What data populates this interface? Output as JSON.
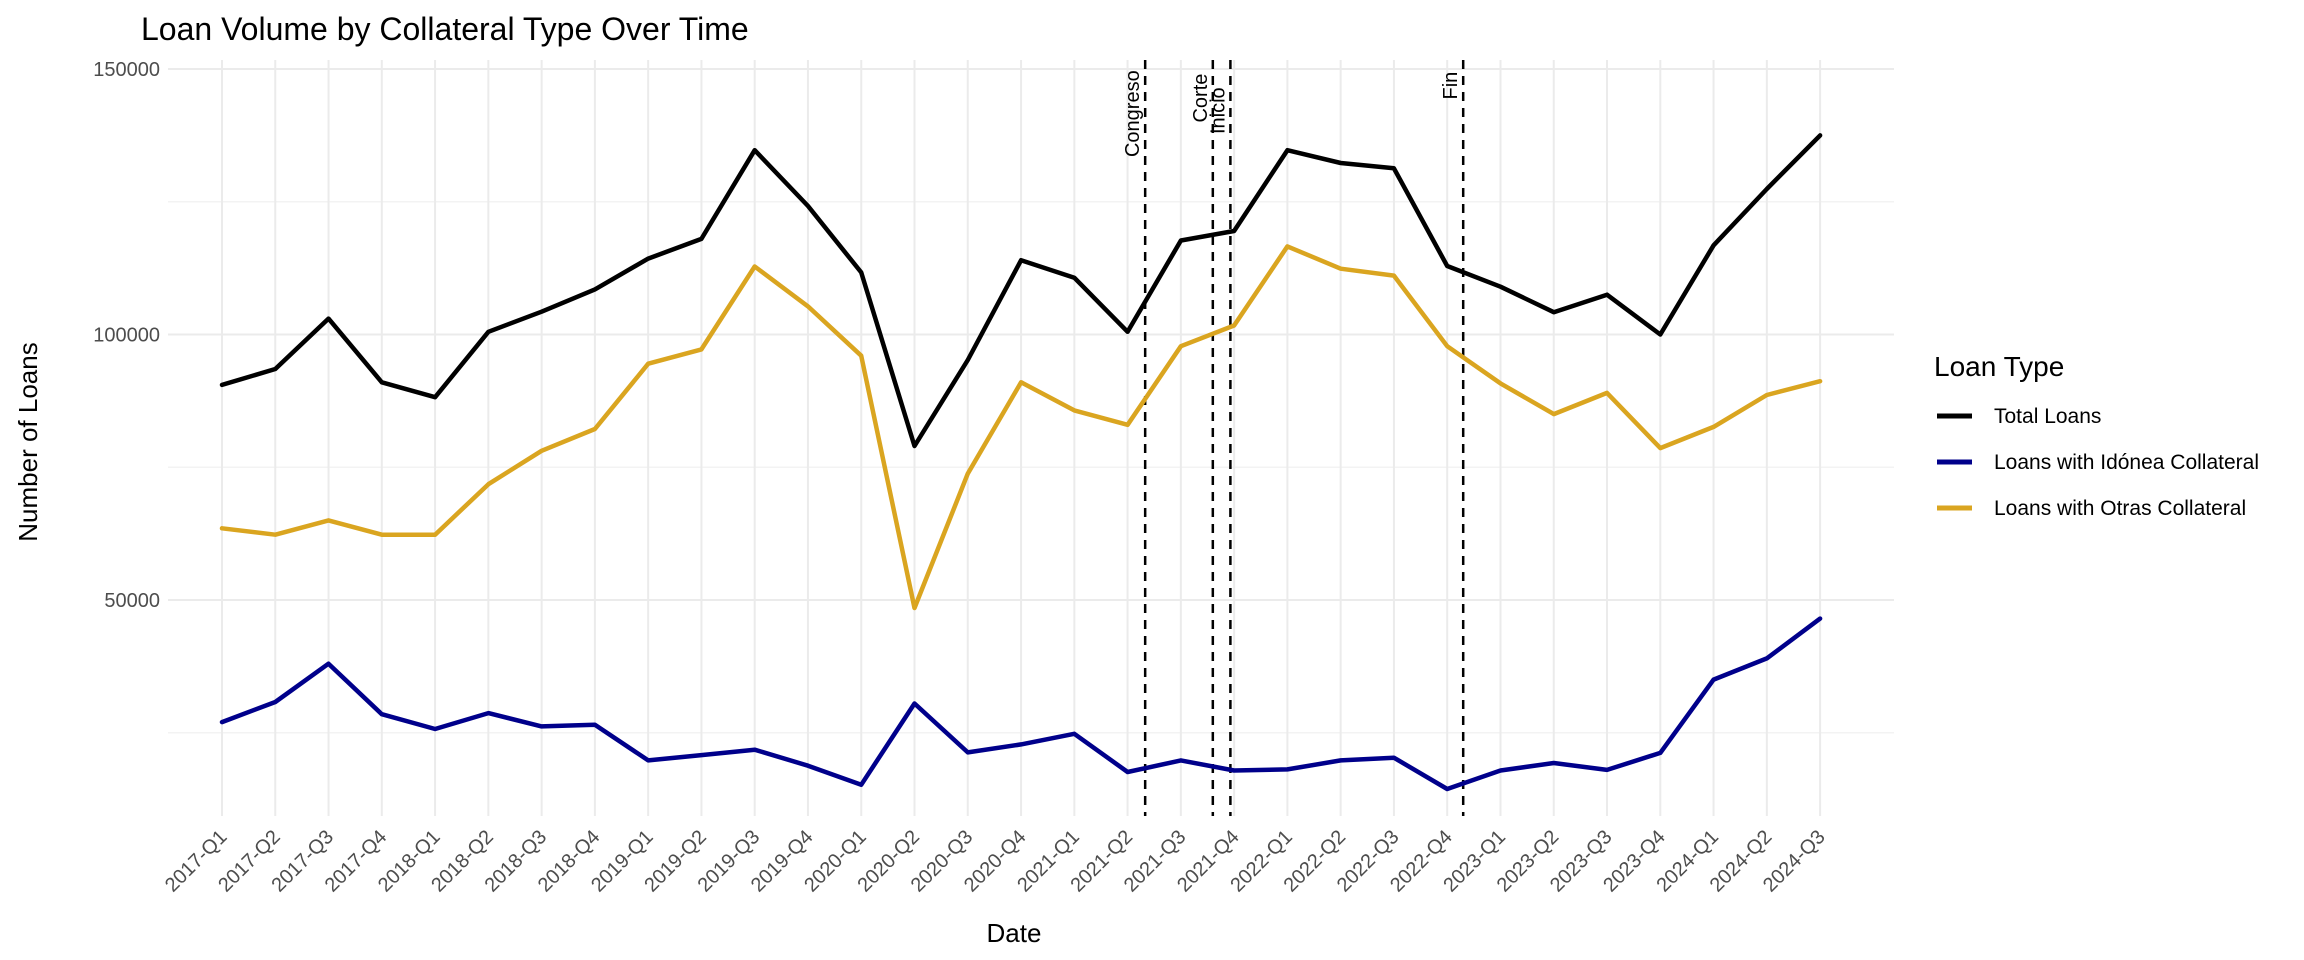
{
  "chart_data": {
    "type": "line",
    "title": "Loan Volume by Collateral Type Over Time",
    "xlabel": "Date",
    "ylabel": "Number of Loans",
    "categories": [
      "2017-Q1",
      "2017-Q2",
      "2017-Q3",
      "2017-Q4",
      "2018-Q1",
      "2018-Q2",
      "2018-Q3",
      "2018-Q4",
      "2019-Q1",
      "2019-Q2",
      "2019-Q3",
      "2019-Q4",
      "2020-Q1",
      "2020-Q2",
      "2020-Q3",
      "2020-Q4",
      "2021-Q1",
      "2021-Q2",
      "2021-Q3",
      "2021-Q4",
      "2022-Q1",
      "2022-Q2",
      "2022-Q3",
      "2022-Q4",
      "2023-Q1",
      "2023-Q2",
      "2023-Q3",
      "2023-Q4",
      "2024-Q1",
      "2024-Q2",
      "2024-Q3"
    ],
    "y_ticks": [
      50000,
      100000,
      150000
    ],
    "y_tick_labels": [
      "50000",
      "100000",
      "150000"
    ],
    "ylim": [
      10000,
      151000
    ],
    "grid": true,
    "legend": {
      "title": "Loan Type",
      "position": "right"
    },
    "series": [
      {
        "name": "Total Loans",
        "color": "#000000",
        "values": [
          90500,
          93500,
          103000,
          91000,
          88200,
          100500,
          104300,
          108500,
          114300,
          118000,
          134700,
          124200,
          111700,
          79000,
          95200,
          114000,
          110700,
          100500,
          117700,
          119500,
          134700,
          132300,
          131300,
          112900,
          109000,
          104200,
          107500,
          100000,
          116800,
          127400,
          137500
        ]
      },
      {
        "name": "Loans with Idónea Collateral",
        "color": "#00008b",
        "values": [
          27000,
          30800,
          38000,
          28500,
          25700,
          28700,
          26200,
          26500,
          19800,
          20800,
          21800,
          18800,
          15200,
          30500,
          21300,
          22800,
          24800,
          17600,
          19800,
          17900,
          18100,
          19800,
          20300,
          14400,
          17900,
          19300,
          18000,
          21200,
          35000,
          39000,
          46500
        ]
      },
      {
        "name": "Loans with Otras Collateral",
        "color": "#daa520",
        "values": [
          63500,
          62300,
          65000,
          62300,
          62300,
          71800,
          78100,
          82200,
          94500,
          97200,
          112800,
          105300,
          96000,
          48500,
          73800,
          91000,
          85700,
          83000,
          97800,
          101700,
          116600,
          112400,
          111100,
          97800,
          90800,
          85000,
          89000,
          78600,
          82600,
          88600,
          91200
        ]
      }
    ],
    "events": [
      {
        "label": "Congreso",
        "x": 17.33
      },
      {
        "label": "Corte",
        "x": 18.6
      },
      {
        "label": "Inicio",
        "x": 18.93
      },
      {
        "label": "Fin",
        "x": 23.3
      }
    ]
  }
}
